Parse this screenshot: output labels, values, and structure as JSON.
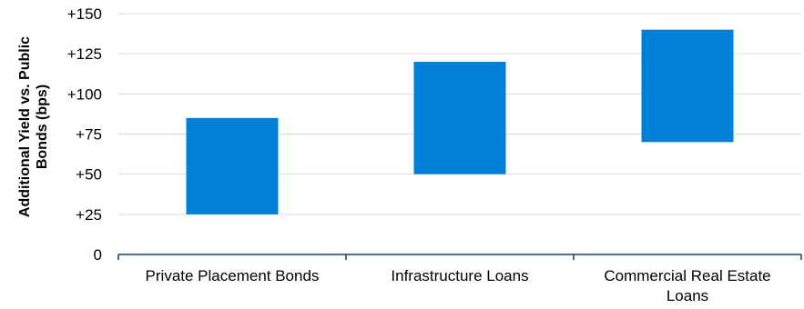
{
  "chart_data": {
    "type": "bar",
    "subtype": "floating-range",
    "title": "",
    "xlabel": "",
    "ylabel": "Additional Yield vs. Public Bonds (bps)",
    "ylabel_lines": [
      "Additional Yield vs. Public",
      "Bonds (bps)"
    ],
    "ylim": [
      0,
      150
    ],
    "yticks": [
      0,
      25,
      50,
      75,
      100,
      125,
      150
    ],
    "ytick_labels": [
      "0",
      "+25",
      "+50",
      "+75",
      "+100",
      "+125",
      "+150"
    ],
    "grid": true,
    "legend": "none",
    "categories": [
      [
        "Private Placement Bonds"
      ],
      [
        "Infrastructure Loans"
      ],
      [
        "Commercial Real Estate",
        "Loans"
      ]
    ],
    "ranges": [
      {
        "low": 25,
        "high": 85
      },
      {
        "low": 50,
        "high": 120
      },
      {
        "low": 70,
        "high": 140
      }
    ],
    "colors": {
      "bar": "#0080d8",
      "grid": "#d9d9d9",
      "axis": "#1f3864"
    }
  }
}
